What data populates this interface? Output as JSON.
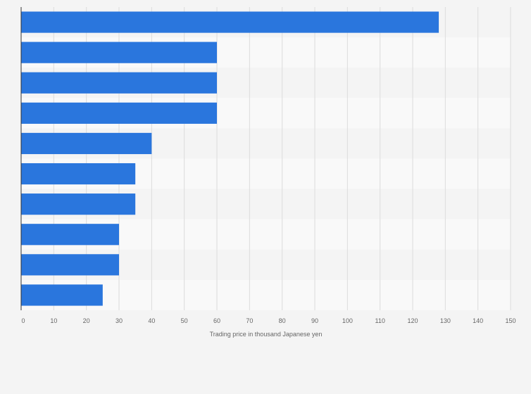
{
  "chart_data": {
    "type": "bar",
    "orientation": "horizontal",
    "categories": [
      "",
      "",
      "",
      "",
      "",
      "",
      "",
      "",
      "",
      ""
    ],
    "values": [
      128,
      60,
      60,
      60,
      40,
      35,
      35,
      30,
      30,
      25
    ],
    "xlabel": "Trading price in thousand Japanese yen",
    "ylabel": "",
    "xlim": [
      0,
      150
    ],
    "xticks": [
      0,
      10,
      20,
      30,
      40,
      50,
      60,
      70,
      80,
      90,
      100,
      110,
      120,
      130,
      140,
      150
    ],
    "grid": true,
    "legend": "none",
    "bar_color": "#2a76dd"
  }
}
